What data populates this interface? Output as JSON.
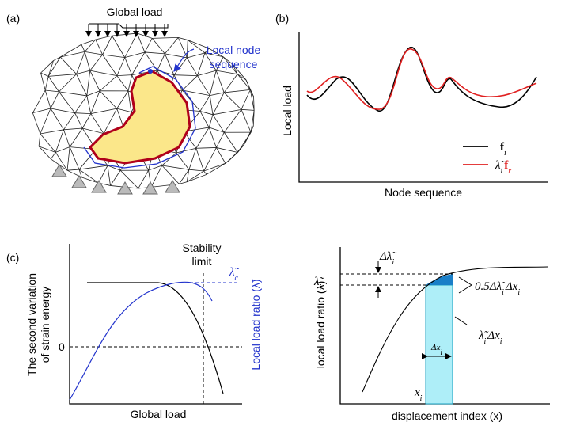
{
  "panels": {
    "a": {
      "label": "(a)",
      "global_load": "Global load",
      "local_node_sequence": [
        "Local node",
        "sequence"
      ]
    },
    "b": {
      "label": "(b)",
      "y_axis": "Local load",
      "x_axis": "Node sequence",
      "legend": [
        {
          "name": [
            [
              "f",
              "i"
            ]
          ],
          "color": "#000000"
        },
        {
          "name": [
            [
              "λ̃",
              "i"
            ],
            [
              "f",
              "r"
            ]
          ],
          "color": "#e02020"
        }
      ]
    },
    "c": {
      "label": "(c)",
      "zero": "0",
      "stability_limit": [
        "Stability",
        "limit"
      ],
      "lambda_c": [
        [
          "λ̃",
          "c"
        ]
      ],
      "y_axis_left": [
        "The second variation",
        "of strain energy"
      ],
      "y_axis_right": "Local load ratio (λ̃)",
      "x_axis": "Global load"
    },
    "d": {
      "delta_lambda": [
        [
          "Δλ̃",
          "i"
        ]
      ],
      "lambda_i": [
        [
          "λ̃",
          "i"
        ]
      ],
      "area_triangle": [
        [
          "0.5Δλ̃",
          "i"
        ],
        [
          "Δx",
          "i"
        ]
      ],
      "area_rectangle": [
        [
          "λ̃",
          "i"
        ],
        [
          "Δx",
          "i"
        ]
      ],
      "delta_x": [
        [
          "Δx",
          "i"
        ]
      ],
      "x_i": [
        [
          "x",
          "i"
        ]
      ],
      "y_axis": "local load ratio (λ̃)",
      "x_axis": "displacement index (x)"
    }
  }
}
